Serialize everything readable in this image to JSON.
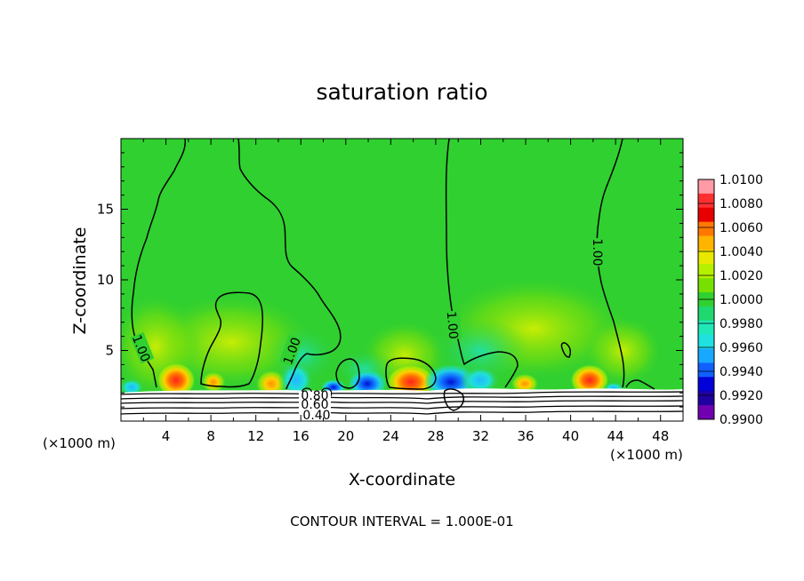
{
  "chart_data": {
    "type": "heatmap",
    "title": "saturation ratio",
    "xlabel": "X-coordinate",
    "ylabel": "Z-coordinate",
    "x_unit": "(×1000 m)",
    "x_unit_right": "(×1000 m)",
    "footer": "CONTOUR INTERVAL = 1.000E-01",
    "xlim": [
      0,
      50
    ],
    "ylim": [
      0,
      20
    ],
    "x_ticks": [
      "4",
      "8",
      "12",
      "16",
      "20",
      "24",
      "28",
      "32",
      "36",
      "40",
      "44",
      "48"
    ],
    "y_ticks": [
      "5",
      "10",
      "15"
    ],
    "colorbar": {
      "labels": [
        "1.0100",
        "1.0080",
        "1.0060",
        "1.0040",
        "1.0020",
        "1.0000",
        "0.9980",
        "0.9960",
        "0.9940",
        "0.9920",
        "0.9900"
      ],
      "colors": [
        "#ff9aa6",
        "#ff3030",
        "#e80000",
        "#ff7800",
        "#ffb400",
        "#e8e800",
        "#b4f000",
        "#78e000",
        "#30d030",
        "#20d870",
        "#20e8b8",
        "#20e0e0",
        "#18a8ff",
        "#1060ff",
        "#0000d8",
        "#2000a0",
        "#7000b0"
      ]
    },
    "contour_labels": [
      "1.00",
      "1.00",
      "1.00",
      "1.00",
      "0.80",
      "0.60",
      "0.40"
    ],
    "hotspots": [
      {
        "x": 5.0,
        "z": 2.7,
        "value": 1.007
      },
      {
        "x": 13.5,
        "z": 2.6,
        "value": 1.004
      },
      {
        "x": 26.0,
        "z": 2.6,
        "value": 1.006
      },
      {
        "x": 41.5,
        "z": 2.6,
        "value": 1.005
      }
    ],
    "coldspots": [
      {
        "x": 15.5,
        "z": 2.6,
        "value": 0.9945
      },
      {
        "x": 22.0,
        "z": 2.6,
        "value": 0.994
      },
      {
        "x": 29.5,
        "z": 2.6,
        "value": 0.993
      },
      {
        "x": 33.5,
        "z": 2.5,
        "value": 0.9955
      }
    ]
  }
}
